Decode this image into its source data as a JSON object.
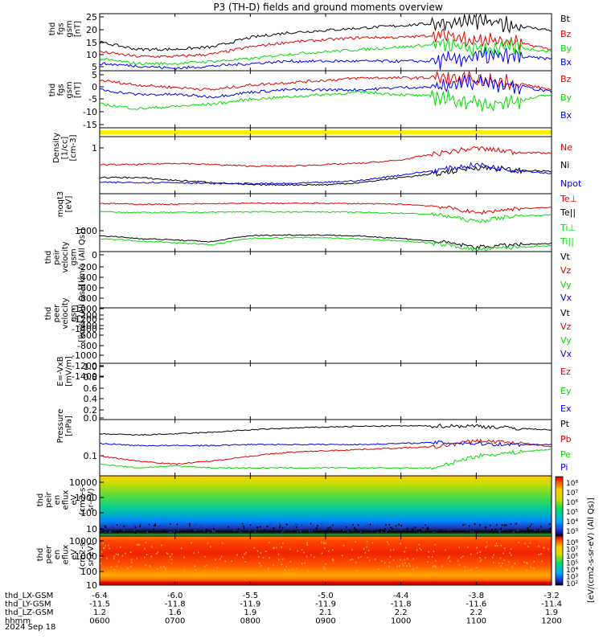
{
  "title": "P3 (TH-D) fields and ground moments overview",
  "colors": {
    "black": "#000000",
    "red": "#e00000",
    "green": "#00dd00",
    "blue": "#0000ee",
    "yellow": "#ffee00"
  },
  "panels": [
    {
      "id": "fgs_mag",
      "ylabel": [
        "thd",
        "fgs",
        "gsm",
        "[nT]"
      ],
      "yticks": [
        "25",
        "20",
        "15",
        "10",
        "5"
      ],
      "ylim": [
        3,
        27
      ],
      "legend": [
        {
          "label": "Bt",
          "color": "black"
        },
        {
          "label": "Bz",
          "color": "red"
        },
        {
          "label": "By",
          "color": "green"
        },
        {
          "label": "Bx",
          "color": "blue"
        }
      ]
    },
    {
      "id": "fgs_comp",
      "ylabel": [
        "thd",
        "fgs",
        "gsm",
        "[nT]"
      ],
      "yticks": [
        "5",
        "0",
        "-5",
        "-10",
        "-15"
      ],
      "ylim": [
        -18,
        6
      ],
      "legend": [
        {
          "label": "Bz",
          "color": "red"
        },
        {
          "label": "By",
          "color": "green"
        },
        {
          "label": "Bx",
          "color": "blue"
        }
      ]
    },
    {
      "id": "flag",
      "ylabel": [],
      "yticks": [],
      "legend": []
    },
    {
      "id": "density",
      "ylabel": [
        "Density",
        "[1/cc]",
        "[cm-3]"
      ],
      "yticks": [
        "1"
      ],
      "scale": "log",
      "legend": [
        {
          "label": "Ne",
          "color": "red"
        },
        {
          "label": "Ni",
          "color": "black"
        },
        {
          "label": "Npot",
          "color": "blue"
        }
      ]
    },
    {
      "id": "temp",
      "ylabel": [
        "moqt3",
        "[eV]"
      ],
      "yticks": [
        "1000"
      ],
      "scale": "log",
      "legend": [
        {
          "label": "Te⊥",
          "color": "red"
        },
        {
          "label": "Te||",
          "color": "black"
        },
        {
          "label": "Ti⊥",
          "color": "green"
        },
        {
          "label": "Ti||",
          "color": "green"
        }
      ]
    },
    {
      "id": "ion_vel",
      "ylabel": [
        "thd",
        "peir",
        "velocity",
        "gsm",
        "[km/s (All Qs)]"
      ],
      "yticks": [
        "0",
        "-200",
        "-400",
        "-600",
        "-800",
        "-1000",
        "-1200",
        "-1400"
      ],
      "ylim": [
        -1480,
        0
      ],
      "legend": [
        {
          "label": "Vt",
          "color": "black"
        },
        {
          "label": "Vz",
          "color": "red"
        },
        {
          "label": "Vy",
          "color": "green"
        },
        {
          "label": "Vx",
          "color": "blue"
        }
      ]
    },
    {
      "id": "ele_vel",
      "ylabel": [
        "thd",
        "peer",
        "velocity",
        "gsm",
        "[km/s (All Qs)]"
      ],
      "yticks": [
        "-200",
        "-400",
        "-600",
        "-800",
        "-1000",
        "-1200",
        "-1400"
      ],
      "ylim": [
        -1480,
        -120
      ],
      "legend": [
        {
          "label": "Vt",
          "color": "black"
        },
        {
          "label": "Vz",
          "color": "red"
        },
        {
          "label": "Vy",
          "color": "green"
        },
        {
          "label": "Vx",
          "color": "blue"
        }
      ]
    },
    {
      "id": "efield",
      "ylabel": [
        "E=-VxB",
        "[mV/m]"
      ],
      "yticks": [
        "1.0",
        "0.8",
        "0.6",
        "0.4",
        "0.2",
        "0.0"
      ],
      "ylim": [
        -0.05,
        1.05
      ],
      "legend": [
        {
          "label": "Ez",
          "color": "red"
        },
        {
          "label": "Ey",
          "color": "green"
        },
        {
          "label": "Ex",
          "color": "blue"
        }
      ]
    },
    {
      "id": "pressure",
      "ylabel": [
        "Pressure",
        "[nPa]"
      ],
      "yticks": [
        "0.1"
      ],
      "scale": "log",
      "legend": [
        {
          "label": "Pt",
          "color": "black"
        },
        {
          "label": "Pb",
          "color": "red"
        },
        {
          "label": "Pe",
          "color": "green"
        },
        {
          "label": "Pi",
          "color": "blue"
        }
      ]
    },
    {
      "id": "ion_spec",
      "ylabel": [
        "thd",
        "peir",
        "en",
        "eflux",
        "eV",
        "(cm2-s-",
        "sr-eV)"
      ],
      "yticks": [
        "10000",
        "1000",
        "100",
        "10"
      ],
      "legend": []
    },
    {
      "id": "ele_spec",
      "ylabel": [
        "thd",
        "peer",
        "en",
        "eflux",
        "eV",
        "(cm2-s-",
        "sr-eV)"
      ],
      "yticks": [
        "10000",
        "1000",
        "100",
        "10"
      ],
      "legend": []
    }
  ],
  "colorbar": {
    "label": "[eV/(cm2-s-sr-eV) (All Qs)]",
    "ticks_top": [
      "10⁸",
      "10⁷",
      "10⁶",
      "10⁵",
      "10⁴",
      "10³"
    ],
    "ticks_bottom": [
      "10⁸",
      "10⁷",
      "10⁶",
      "10⁵",
      "10⁴",
      "10³",
      "10²"
    ]
  },
  "xaxis": {
    "rows": [
      {
        "label": "thd_LX-GSM",
        "values": [
          "-6.4",
          "-6.0",
          "-5.5",
          "-5.0",
          "-4.4",
          "-3.8",
          "-3.2"
        ]
      },
      {
        "label": "thd_LY-GSM",
        "values": [
          "-11.5",
          "-11.8",
          "-11.9",
          "-11.9",
          "-11.8",
          "-11.6",
          "-11.4"
        ]
      },
      {
        "label": "thd_LZ-GSM",
        "values": [
          "1.2",
          "1.6",
          "1.9",
          "2.1",
          "2.2",
          "2.2",
          "1.9"
        ]
      },
      {
        "label": "hhmm",
        "values": [
          "0600",
          "0700",
          "0800",
          "0900",
          "1000",
          "1100",
          "1200"
        ]
      }
    ],
    "date": "2024 Sep 18"
  },
  "chart_data": {
    "type": "line",
    "title": "P3 (TH-D) fields and ground moments overview",
    "x_hours": [
      6,
      6.5,
      7,
      7.5,
      8,
      8.5,
      9,
      9.5,
      10,
      10.5,
      11,
      11.5,
      12
    ],
    "series": [
      {
        "name": "Bt",
        "panel": "fgs_mag",
        "values": [
          15,
          12,
          12,
          13,
          17,
          19,
          20,
          21,
          22,
          23,
          24,
          22,
          20
        ]
      },
      {
        "name": "Bz",
        "panel": "fgs_mag",
        "values": [
          11,
          9,
          9,
          10,
          13,
          15,
          16,
          17,
          17,
          18,
          16,
          15,
          12
        ]
      },
      {
        "name": "By",
        "panel": "fgs_mag",
        "values": [
          8,
          6,
          6,
          7,
          8,
          10,
          11,
          12,
          13,
          14,
          12,
          13,
          11
        ]
      },
      {
        "name": "Bx",
        "panel": "fgs_mag",
        "values": [
          6,
          5,
          4,
          5,
          6,
          7,
          7,
          7,
          7,
          7,
          9,
          9,
          8
        ]
      },
      {
        "name": "Bz",
        "panel": "fgs_comp",
        "values": [
          2,
          0,
          -1,
          -2,
          0,
          1,
          2,
          3,
          3,
          3,
          2,
          1,
          -2
        ]
      },
      {
        "name": "By",
        "panel": "fgs_comp",
        "values": [
          -8,
          -10,
          -9,
          -8,
          -6,
          -5,
          -4,
          -3,
          -4,
          -5,
          -8,
          -7,
          -4
        ]
      },
      {
        "name": "Bx",
        "panel": "fgs_comp",
        "values": [
          -2,
          -4,
          -4,
          -5,
          -3,
          -2,
          -2,
          -2,
          -1,
          -1,
          2,
          0,
          -3
        ]
      },
      {
        "name": "Ne",
        "panel": "density",
        "values": [
          0.45,
          0.45,
          0.48,
          0.45,
          0.42,
          0.42,
          0.45,
          0.48,
          0.55,
          0.75,
          0.95,
          0.8,
          0.75
        ]
      },
      {
        "name": "Ni",
        "panel": "density",
        "values": [
          0.25,
          0.25,
          0.22,
          0.2,
          0.18,
          0.18,
          0.18,
          0.2,
          0.25,
          0.3,
          0.4,
          0.35,
          0.33
        ]
      },
      {
        "name": "Npot",
        "panel": "density",
        "values": [
          0.2,
          0.2,
          0.2,
          0.19,
          0.19,
          0.19,
          0.2,
          0.22,
          0.28,
          0.35,
          0.45,
          0.35,
          0.3
        ]
      },
      {
        "name": "Te⊥",
        "panel": "temp",
        "values": [
          9000,
          8500,
          8500,
          8800,
          9000,
          9000,
          9000,
          8800,
          8500,
          7500,
          5000,
          6500,
          7000
        ]
      },
      {
        "name": "Ti⊥",
        "panel": "temp",
        "values": [
          5500,
          5200,
          5200,
          5300,
          5400,
          5400,
          5400,
          5200,
          5000,
          4500,
          3000,
          4200,
          4500
        ]
      },
      {
        "name": "Te||",
        "panel": "temp",
        "values": [
          1300,
          1100,
          1000,
          900,
          1300,
          1350,
          1350,
          1250,
          1100,
          900,
          650,
          750,
          800
        ]
      },
      {
        "name": "Ti||",
        "panel": "temp",
        "values": [
          1100,
          950,
          850,
          750,
          1100,
          1150,
          1150,
          1050,
          950,
          800,
          550,
          650,
          700
        ]
      },
      {
        "name": "Pt",
        "panel": "pressure",
        "values": [
          0.3,
          0.28,
          0.3,
          0.33,
          0.38,
          0.42,
          0.45,
          0.47,
          0.48,
          0.48,
          0.48,
          0.42,
          0.38
        ]
      },
      {
        "name": "Pb",
        "panel": "pressure",
        "values": [
          0.08,
          0.06,
          0.05,
          0.06,
          0.08,
          0.1,
          0.11,
          0.12,
          0.13,
          0.14,
          0.2,
          0.18,
          0.14
        ]
      },
      {
        "name": "Pe",
        "panel": "pressure",
        "values": [
          0.05,
          0.04,
          0.045,
          0.04,
          0.04,
          0.04,
          0.04,
          0.04,
          0.04,
          0.04,
          0.08,
          0.1,
          0.12
        ]
      },
      {
        "name": "Pi",
        "panel": "pressure",
        "values": [
          0.17,
          0.15,
          0.15,
          0.15,
          0.16,
          0.16,
          0.16,
          0.16,
          0.17,
          0.18,
          0.17,
          0.16,
          0.16
        ]
      }
    ]
  }
}
